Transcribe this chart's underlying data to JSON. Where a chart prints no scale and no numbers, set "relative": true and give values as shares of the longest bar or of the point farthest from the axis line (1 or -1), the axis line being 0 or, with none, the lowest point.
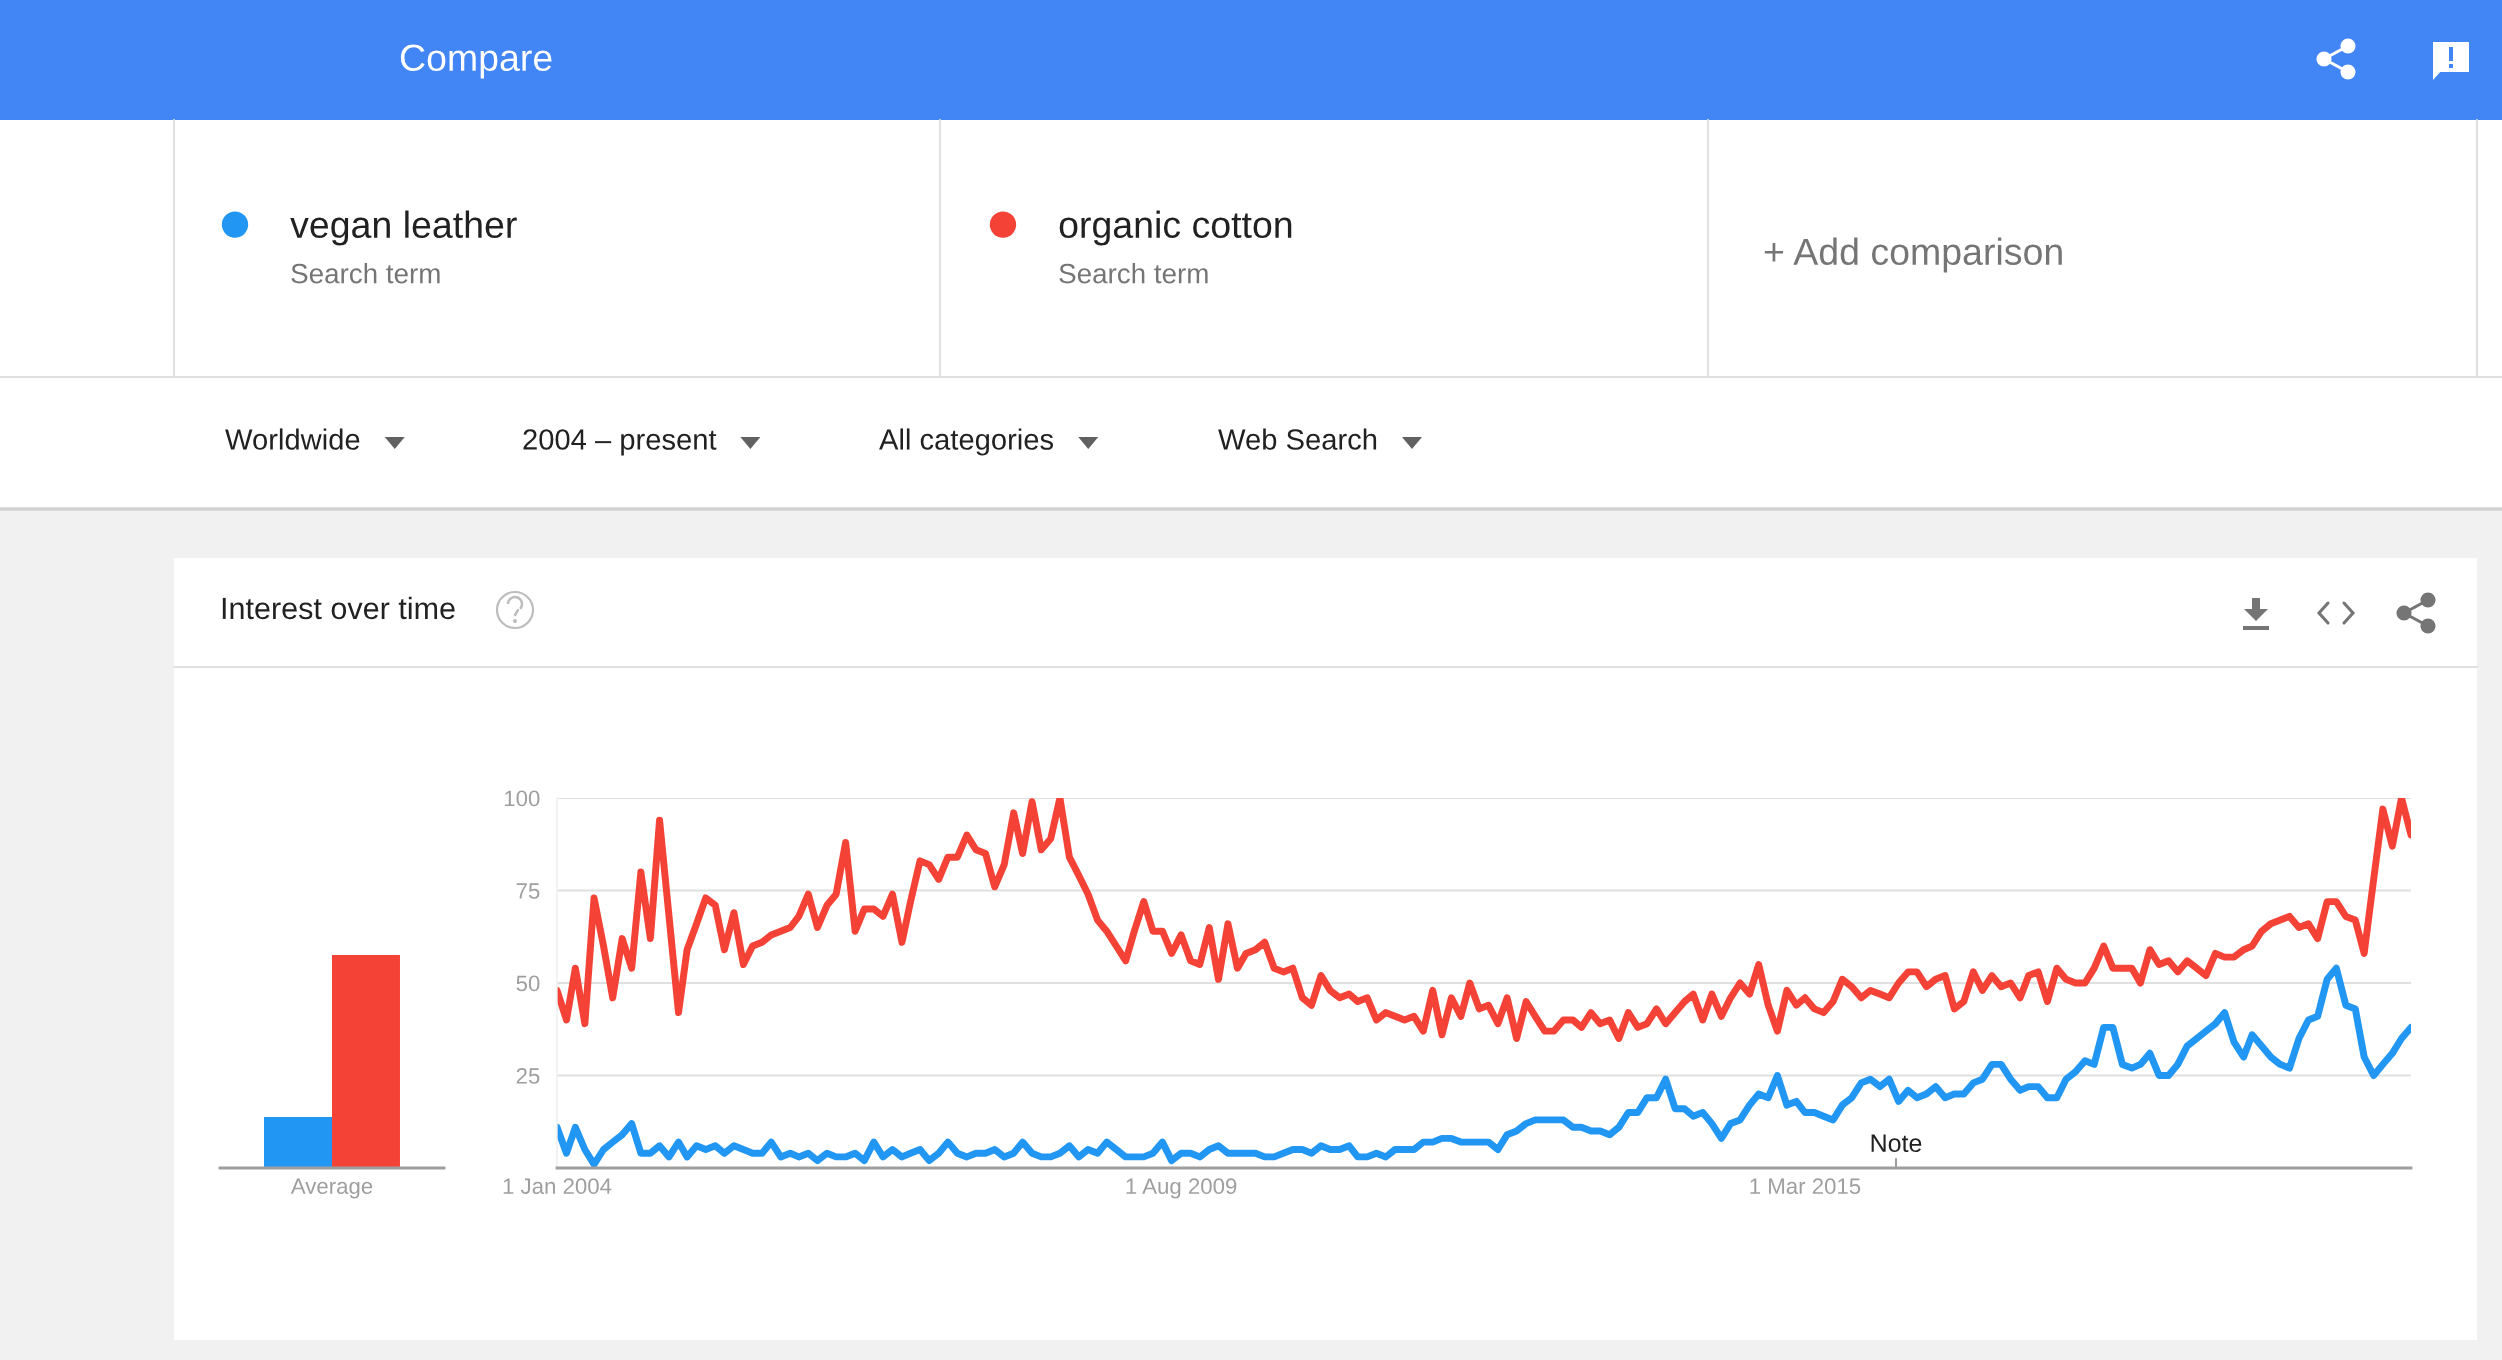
{
  "chart_data": [
    {
      "type": "bar",
      "categories": [
        "Average"
      ],
      "relative": true,
      "series": [
        {
          "color": "#2196f3",
          "values": [
            0.24
          ]
        },
        {
          "color": "#f44336",
          "values": [
            1
          ]
        }
      ]
    },
    {
      "type": "line",
      "title": "Interest over time",
      "x": [
        "2004-01",
        "2004-02",
        "2004-03",
        "2004-04",
        "2004-05",
        "2004-06",
        "2004-07",
        "2004-08",
        "2004-09",
        "2004-10",
        "2004-11",
        "2004-12",
        "2005-01",
        "2005-02",
        "2005-03",
        "2005-04",
        "2005-05",
        "2005-06",
        "2005-07",
        "2005-08",
        "2005-09",
        "2005-10",
        "2005-11",
        "2005-12",
        "2006-01",
        "2006-02",
        "2006-03",
        "2006-04",
        "2006-05",
        "2006-06",
        "2006-07",
        "2006-08",
        "2006-09",
        "2006-10",
        "2006-11",
        "2006-12",
        "2007-01",
        "2007-02",
        "2007-03",
        "2007-04",
        "2007-05",
        "2007-06",
        "2007-07",
        "2007-08",
        "2007-09",
        "2007-10",
        "2007-11",
        "2007-12",
        "2008-01",
        "2008-02",
        "2008-03",
        "2008-04",
        "2008-05",
        "2008-06",
        "2008-07",
        "2008-08",
        "2008-09",
        "2008-10",
        "2008-11",
        "2008-12",
        "2009-01",
        "2009-02",
        "2009-03",
        "2009-04",
        "2009-05",
        "2009-06",
        "2009-07",
        "2009-08",
        "2009-09",
        "2009-10",
        "2009-11",
        "2009-12",
        "2010-01",
        "2010-02",
        "2010-03",
        "2010-04",
        "2010-05",
        "2010-06",
        "2010-07",
        "2010-08",
        "2010-09",
        "2010-10",
        "2010-11",
        "2010-12",
        "2011-01",
        "2011-02",
        "2011-03",
        "2011-04",
        "2011-05",
        "2011-06",
        "2011-07",
        "2011-08",
        "2011-09",
        "2011-10",
        "2011-11",
        "2011-12",
        "2012-01",
        "2012-02",
        "2012-03",
        "2012-04",
        "2012-05",
        "2012-06",
        "2012-07",
        "2012-08",
        "2012-09",
        "2012-10",
        "2012-11",
        "2012-12",
        "2013-01",
        "2013-02",
        "2013-03",
        "2013-04",
        "2013-05",
        "2013-06",
        "2013-07",
        "2013-08",
        "2013-09",
        "2013-10",
        "2013-11",
        "2013-12",
        "2014-01",
        "2014-02",
        "2014-03",
        "2014-04",
        "2014-05",
        "2014-06",
        "2014-07",
        "2014-08",
        "2014-09",
        "2014-10",
        "2014-11",
        "2014-12",
        "2015-01",
        "2015-02",
        "2015-03",
        "2015-04",
        "2015-05",
        "2015-06",
        "2015-07",
        "2015-08",
        "2015-09",
        "2015-10",
        "2015-11",
        "2015-12",
        "2016-01",
        "2016-02",
        "2016-03",
        "2016-04",
        "2016-05",
        "2016-06",
        "2016-07",
        "2016-08",
        "2016-09",
        "2016-10",
        "2016-11",
        "2016-12",
        "2017-01",
        "2017-02",
        "2017-03",
        "2017-04",
        "2017-05",
        "2017-06",
        "2017-07",
        "2017-08",
        "2017-09",
        "2017-10",
        "2017-11",
        "2017-12",
        "2018-01",
        "2018-02",
        "2018-03",
        "2018-04",
        "2018-05",
        "2018-06",
        "2018-07",
        "2018-08",
        "2018-09",
        "2018-10",
        "2018-11",
        "2018-12",
        "2019-01",
        "2019-02",
        "2019-03",
        "2019-04",
        "2019-05",
        "2019-06",
        "2019-07",
        "2019-08",
        "2019-09",
        "2019-10",
        "2019-11",
        "2019-12",
        "2020-01",
        "2020-02",
        "2020-03",
        "2020-04",
        "2020-05",
        "2020-06",
        "2020-07",
        "2020-08"
      ],
      "series": [
        {
          "name": "vegan leather",
          "color": "#2196f3",
          "values": [
            11,
            4,
            11,
            5,
            1,
            5,
            7,
            9,
            12,
            4,
            4,
            6,
            3,
            7,
            3,
            6,
            5,
            6,
            4,
            6,
            5,
            4,
            4,
            7,
            3,
            4,
            3,
            4,
            2,
            4,
            3,
            3,
            4,
            2,
            7,
            3,
            5,
            3,
            4,
            5,
            2,
            4,
            7,
            4,
            3,
            4,
            4,
            5,
            3,
            4,
            7,
            4,
            3,
            3,
            4,
            6,
            3,
            5,
            4,
            7,
            5,
            3,
            3,
            3,
            4,
            7,
            2,
            4,
            4,
            3,
            5,
            6,
            4,
            4,
            4,
            4,
            3,
            3,
            4,
            5,
            5,
            4,
            6,
            5,
            5,
            6,
            3,
            3,
            4,
            3,
            5,
            5,
            5,
            7,
            7,
            8,
            8,
            7,
            7,
            7,
            7,
            5,
            9,
            10,
            12,
            13,
            13,
            13,
            13,
            11,
            11,
            10,
            10,
            9,
            11,
            15,
            15,
            19,
            19,
            24,
            16,
            16,
            14,
            15,
            12,
            8,
            12,
            13,
            17,
            20,
            19,
            25,
            17,
            18,
            15,
            15,
            14,
            13,
            17,
            19,
            23,
            24,
            22,
            24,
            18,
            21,
            19,
            20,
            22,
            19,
            20,
            20,
            23,
            24,
            28,
            28,
            24,
            21,
            22,
            22,
            19,
            19,
            24,
            26,
            29,
            28,
            38,
            38,
            28,
            27,
            28,
            31,
            25,
            25,
            28,
            33,
            35,
            37,
            39,
            42,
            34,
            30,
            36,
            33,
            30,
            28,
            27,
            35,
            40,
            41,
            51,
            54,
            44,
            43,
            30,
            25,
            28,
            31,
            35,
            38
          ]
        },
        {
          "name": "organic cotton",
          "color": "#f44336",
          "values": [
            48,
            40,
            54,
            39,
            73,
            60,
            46,
            62,
            54,
            80,
            62,
            94,
            68,
            42,
            59,
            66,
            73,
            71,
            59,
            69,
            55,
            60,
            61,
            63,
            64,
            65,
            68,
            74,
            65,
            71,
            74,
            88,
            64,
            70,
            70,
            68,
            74,
            61,
            72,
            83,
            82,
            78,
            84,
            84,
            90,
            86,
            85,
            76,
            82,
            96,
            85,
            99,
            86,
            89,
            100,
            84,
            79,
            74,
            67,
            64,
            60,
            56,
            64,
            72,
            64,
            64,
            58,
            63,
            56,
            55,
            65,
            51,
            66,
            54,
            58,
            59,
            61,
            54,
            53,
            54,
            46,
            44,
            52,
            48,
            46,
            47,
            45,
            46,
            40,
            42,
            41,
            40,
            41,
            37,
            48,
            36,
            46,
            41,
            50,
            43,
            44,
            39,
            46,
            35,
            45,
            41,
            37,
            37,
            40,
            40,
            38,
            42,
            39,
            40,
            35,
            42,
            38,
            39,
            43,
            39,
            42,
            45,
            47,
            40,
            47,
            41,
            46,
            50,
            47,
            55,
            44,
            37,
            48,
            44,
            46,
            43,
            42,
            45,
            51,
            49,
            46,
            48,
            47,
            46,
            50,
            53,
            53,
            49,
            51,
            52,
            43,
            45,
            53,
            48,
            52,
            49,
            50,
            46,
            52,
            53,
            45,
            54,
            51,
            50,
            50,
            54,
            60,
            54,
            54,
            54,
            50,
            59,
            55,
            56,
            53,
            56,
            54,
            52,
            58,
            57,
            57,
            59,
            60,
            64,
            66,
            67,
            68,
            65,
            66,
            62,
            72,
            72,
            68,
            67,
            58,
            78,
            97,
            87,
            100,
            90
          ]
        }
      ],
      "xlim": [
        "2004-01",
        "2020-08"
      ],
      "xticks": [
        {
          "value": "2004-01-01",
          "label": "1 Jan 2004"
        },
        {
          "value": "2009-08-01",
          "label": "1 Aug 2009"
        },
        {
          "value": "2015-03-01",
          "label": "1 Mar 2015"
        }
      ],
      "ylim": [
        0,
        100
      ],
      "yticks": [
        25,
        50,
        75,
        100
      ],
      "grid": "y",
      "legend": "top",
      "annotations": [
        "Compare",
        "Search term",
        "Search term",
        "+ Add comparison",
        "Worldwide",
        "2004 – present",
        "All categories",
        "Web Search",
        "Note"
      ]
    }
  ]
}
